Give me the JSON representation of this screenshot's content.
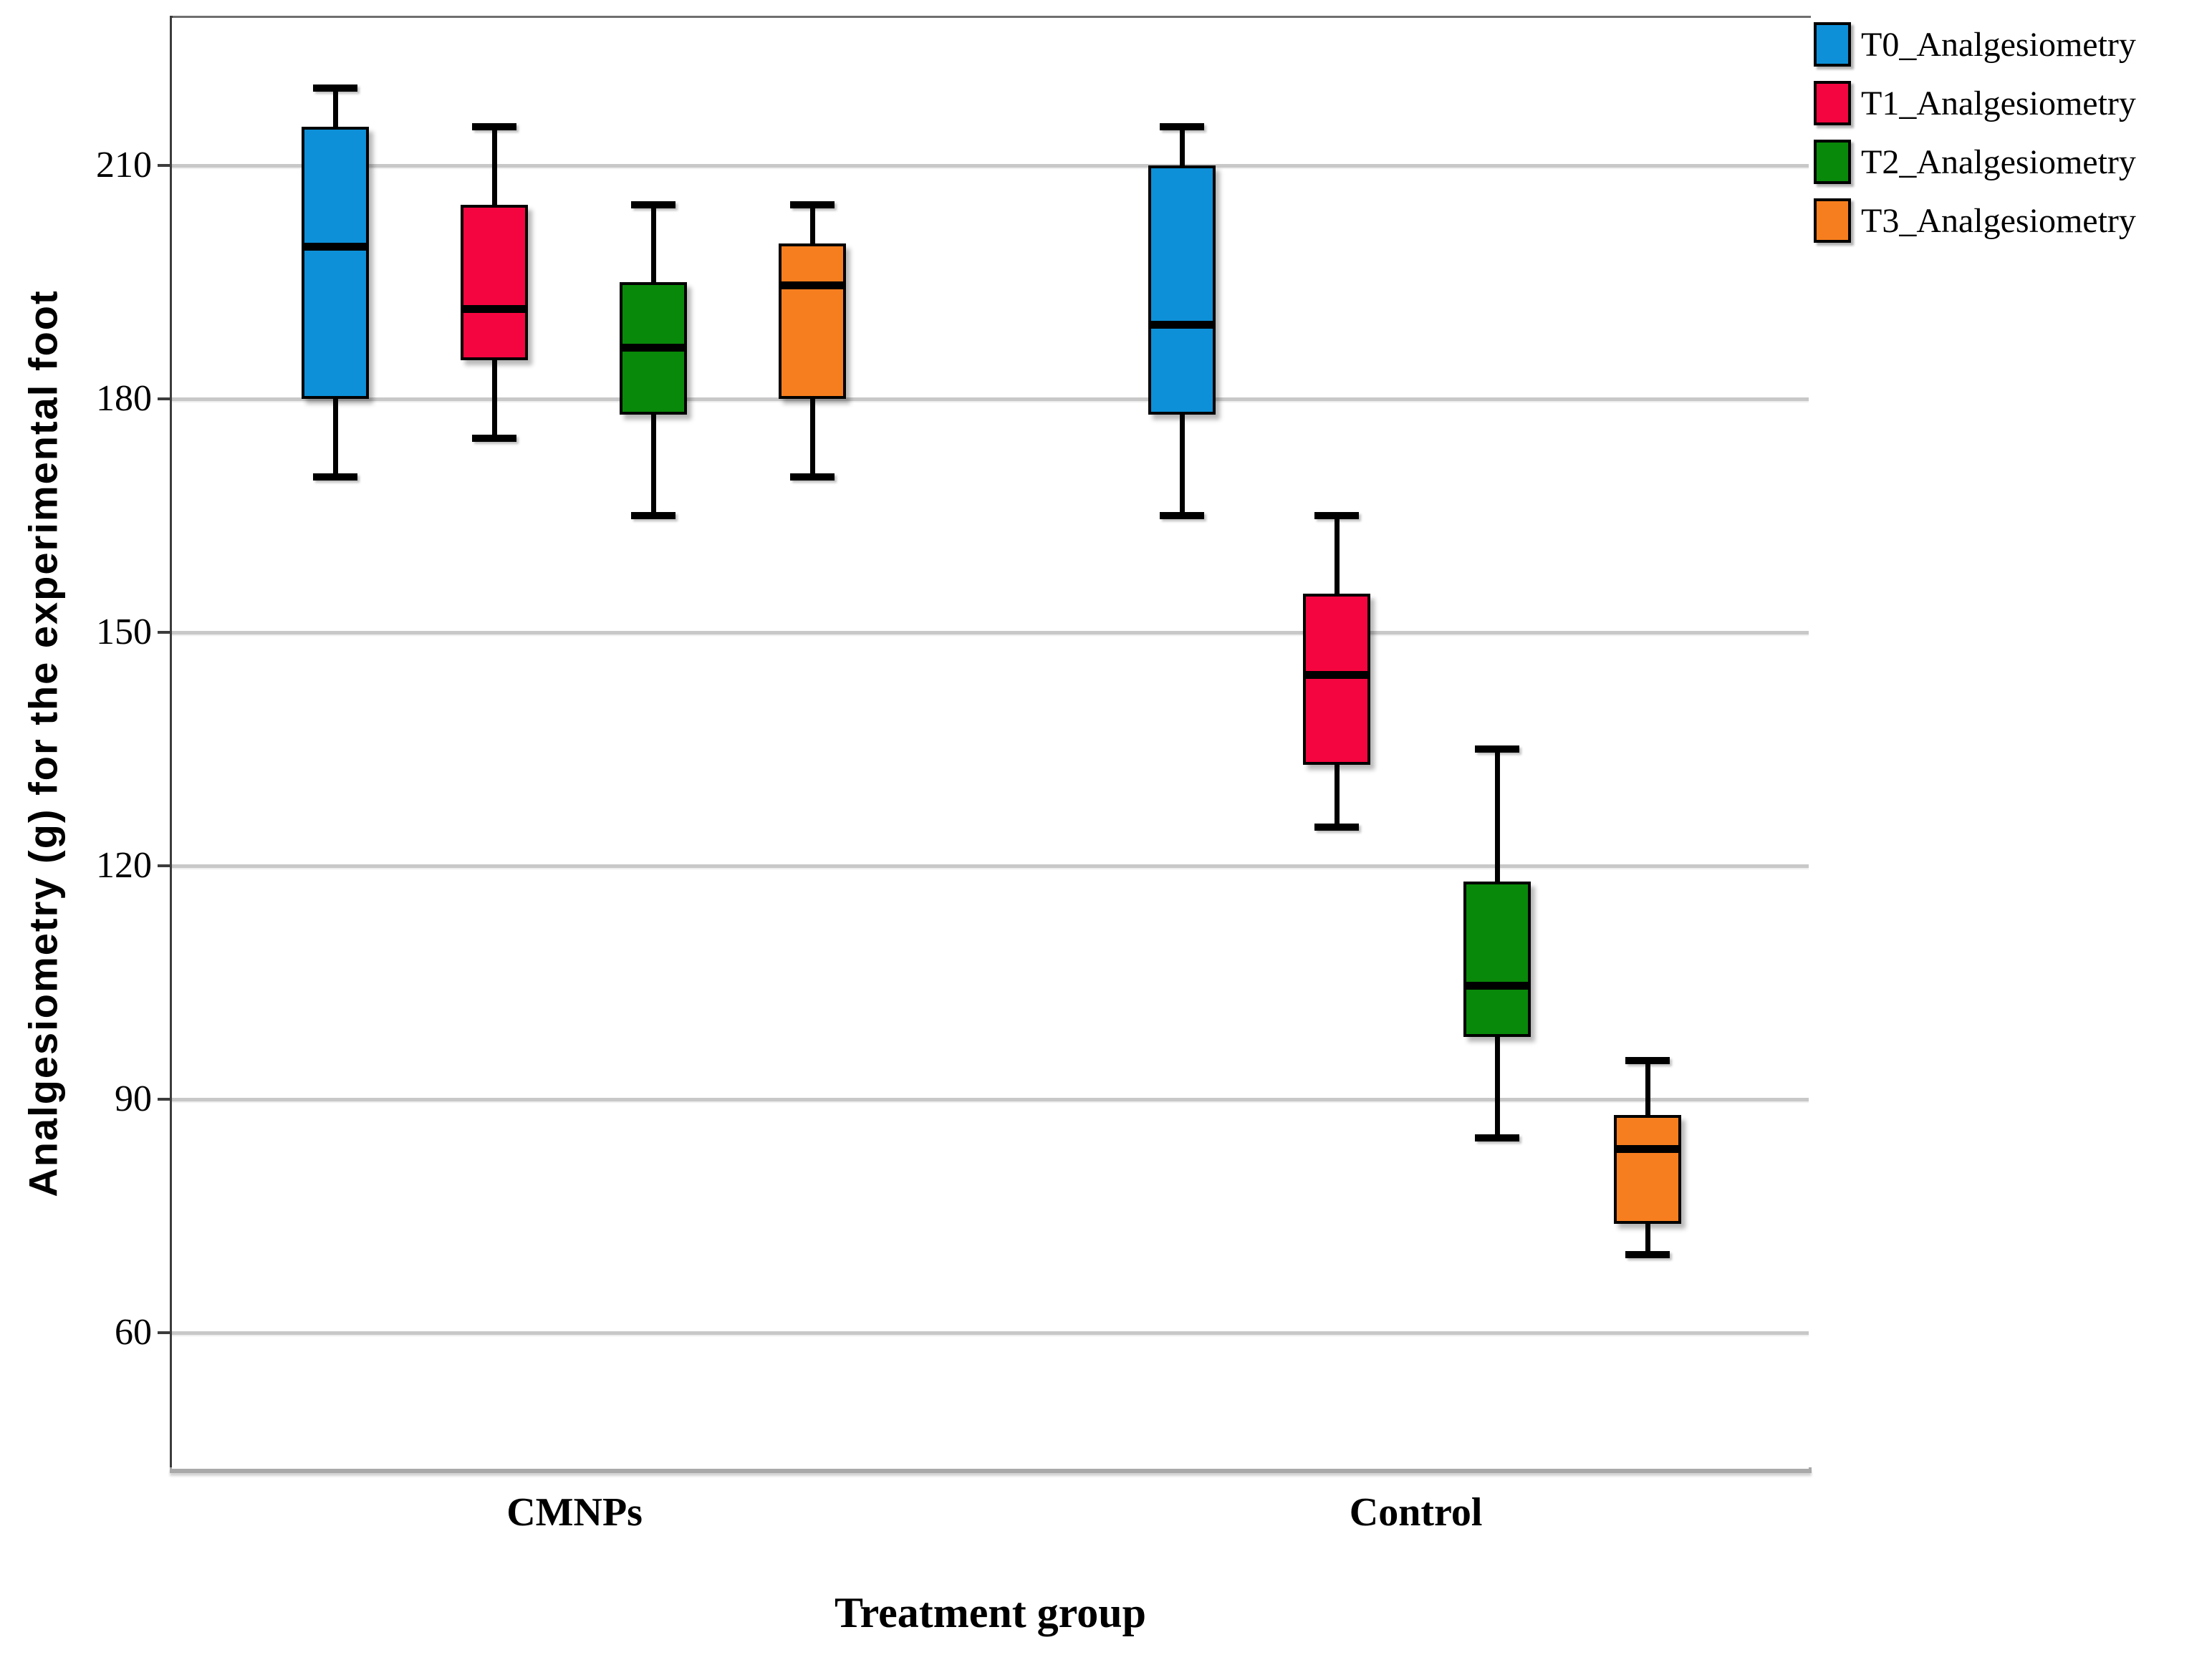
{
  "legend": {
    "items": [
      {
        "label": "T0_Analgesiometry",
        "color": "#0d90d8"
      },
      {
        "label": "T1_Analgesiometry",
        "color": "#f5053f"
      },
      {
        "label": "T2_Analgesiometry",
        "color": "#098909"
      },
      {
        "label": "T3_Analgesiometry",
        "color": "#f77e1e"
      }
    ]
  },
  "chart_data": {
    "type": "boxplot",
    "title": "",
    "xlabel": "Treatment group",
    "ylabel": "Analgesiometry (g) for the experimental foot",
    "y_ticks": [
      210,
      180,
      150,
      120,
      90,
      60
    ],
    "y_domain": [
      42.5,
      229
    ],
    "grid": true,
    "legend_position": "top-right",
    "axis_colors": {
      "gridline": "#c8c8c8",
      "left_axis": "#3c3c3c",
      "bottom_axis": "#a9a9a9"
    },
    "groups": [
      {
        "name": "CMNPs",
        "x_frac": 0.246
      },
      {
        "name": "Control",
        "x_frac": 0.76
      }
    ],
    "box_width_frac": 0.0411,
    "series": [
      {
        "name": "T0_Analgesiometry",
        "color": "#0d90d8",
        "boxes": [
          {
            "group": "CMNPs",
            "x_frac": 0.0998,
            "whisker_low": 170,
            "q1": 180,
            "median": 200,
            "q3": 215,
            "whisker_high": 220
          },
          {
            "group": "Control",
            "x_frac": 0.6171,
            "whisker_low": 165,
            "q1": 178,
            "median": 190,
            "q3": 210,
            "whisker_high": 215
          }
        ]
      },
      {
        "name": "T1_Analgesiometry",
        "color": "#f5053f",
        "boxes": [
          {
            "group": "CMNPs",
            "x_frac": 0.1969,
            "whisker_low": 175,
            "q1": 185,
            "median": 192,
            "q3": 205,
            "whisker_high": 215
          },
          {
            "group": "Control",
            "x_frac": 0.7116,
            "whisker_low": 125,
            "q1": 133,
            "median": 145,
            "q3": 155,
            "whisker_high": 165
          }
        ]
      },
      {
        "name": "T2_Analgesiometry",
        "color": "#098909",
        "boxes": [
          {
            "group": "CMNPs",
            "x_frac": 0.2941,
            "whisker_low": 165,
            "q1": 178,
            "median": 187,
            "q3": 195,
            "whisker_high": 205
          },
          {
            "group": "Control",
            "x_frac": 0.8096,
            "whisker_low": 85,
            "q1": 98,
            "median": 105,
            "q3": 118,
            "whisker_high": 135
          }
        ]
      },
      {
        "name": "T3_Analgesiometry",
        "color": "#f77e1e",
        "boxes": [
          {
            "group": "CMNPs",
            "x_frac": 0.3912,
            "whisker_low": 170,
            "q1": 180,
            "median": 195,
            "q3": 200,
            "whisker_high": 205
          },
          {
            "group": "Control",
            "x_frac": 0.9015,
            "whisker_low": 70,
            "q1": 74,
            "median": 84,
            "q3": 88,
            "whisker_high": 95
          }
        ]
      }
    ]
  }
}
